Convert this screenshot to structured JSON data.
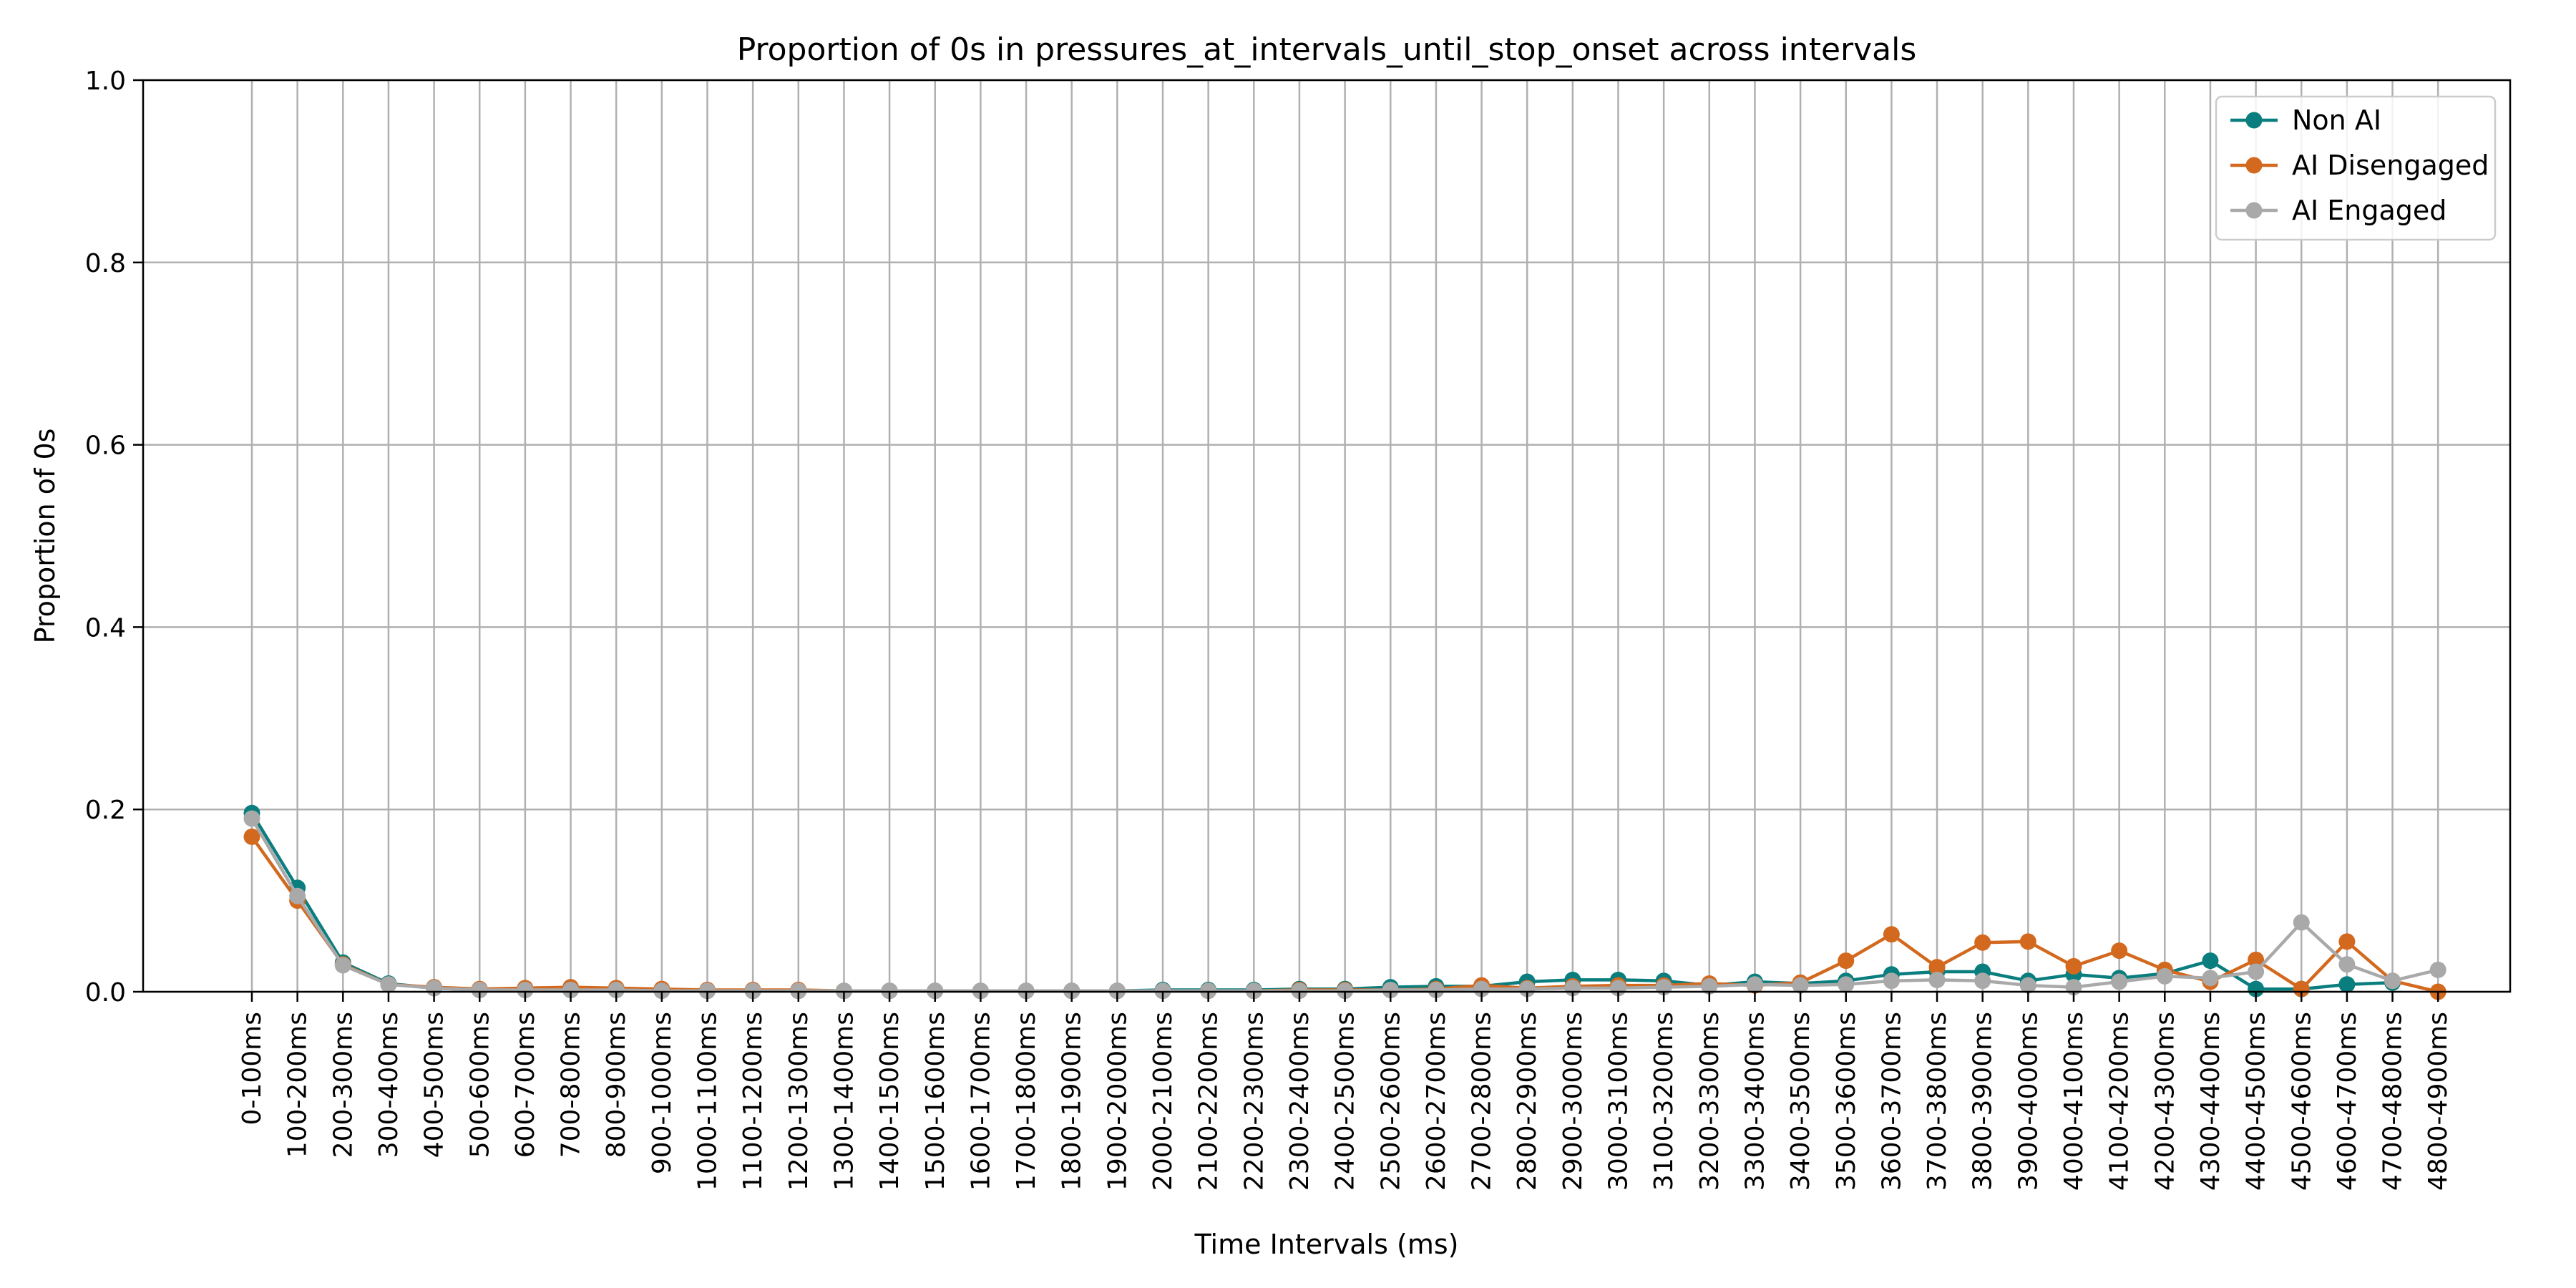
{
  "chart_data": {
    "type": "line",
    "title": "Proportion of 0s in pressures_at_intervals_until_stop_onset across intervals",
    "xlabel": "Time Intervals (ms)",
    "ylabel": "Proportion of 0s",
    "ylim": [
      0,
      1.0
    ],
    "yticks": [
      "0.0",
      "0.2",
      "0.4",
      "0.6",
      "0.8",
      "1.0"
    ],
    "grid": true,
    "legend_position": "top-right",
    "categories": [
      "0-100ms",
      "100-200ms",
      "200-300ms",
      "300-400ms",
      "400-500ms",
      "500-600ms",
      "600-700ms",
      "700-800ms",
      "800-900ms",
      "900-1000ms",
      "1000-1100ms",
      "1100-1200ms",
      "1200-1300ms",
      "1300-1400ms",
      "1400-1500ms",
      "1500-1600ms",
      "1600-1700ms",
      "1700-1800ms",
      "1800-1900ms",
      "1900-2000ms",
      "2000-2100ms",
      "2100-2200ms",
      "2200-2300ms",
      "2300-2400ms",
      "2400-2500ms",
      "2500-2600ms",
      "2600-2700ms",
      "2700-2800ms",
      "2800-2900ms",
      "2900-3000ms",
      "3000-3100ms",
      "3100-3200ms",
      "3200-3300ms",
      "3300-3400ms",
      "3400-3500ms",
      "3500-3600ms",
      "3600-3700ms",
      "3700-3800ms",
      "3800-3900ms",
      "3900-4000ms",
      "4000-4100ms",
      "4100-4200ms",
      "4200-4300ms",
      "4300-4400ms",
      "4400-4500ms",
      "4500-4600ms",
      "4600-4700ms",
      "4700-4800ms",
      "4800-4900ms"
    ],
    "series": [
      {
        "name": "Non AI",
        "color": "#0a7e7e",
        "values": [
          0.196,
          0.114,
          0.032,
          0.009,
          0.004,
          0.002,
          0.002,
          0.002,
          0.002,
          0.002,
          0.001,
          0.001,
          0.001,
          0.001,
          0.001,
          0.001,
          0.001,
          0.001,
          0.001,
          0.001,
          0.002,
          0.002,
          0.002,
          0.003,
          0.003,
          0.005,
          0.006,
          0.006,
          0.011,
          0.013,
          0.013,
          0.012,
          0.007,
          0.011,
          0.009,
          0.012,
          0.019,
          0.022,
          0.022,
          0.012,
          0.019,
          0.015,
          0.02,
          0.034,
          0.003,
          0.003,
          0.008,
          0.01,
          null
        ]
      },
      {
        "name": "AI Disengaged",
        "color": "#d2691e",
        "values": [
          0.17,
          0.1,
          0.03,
          0.008,
          0.005,
          0.003,
          0.004,
          0.005,
          0.004,
          0.003,
          0.002,
          0.002,
          0.002,
          0.001,
          0.001,
          0.001,
          0.001,
          0.001,
          0.001,
          0.001,
          0.001,
          0.001,
          0.001,
          0.002,
          0.002,
          0.002,
          0.003,
          0.007,
          0.004,
          0.006,
          0.007,
          0.007,
          0.009,
          0.007,
          0.01,
          0.034,
          0.063,
          0.027,
          0.054,
          0.055,
          0.028,
          0.045,
          0.024,
          0.011,
          0.035,
          0.003,
          0.055,
          0.012,
          0.0
        ]
      },
      {
        "name": "AI Engaged",
        "color": "#a9a9a9",
        "values": [
          0.19,
          0.105,
          0.029,
          0.008,
          0.004,
          0.002,
          0.002,
          0.002,
          0.002,
          0.001,
          0.001,
          0.001,
          0.001,
          0.001,
          0.001,
          0.001,
          0.001,
          0.001,
          0.001,
          0.001,
          0.001,
          0.001,
          0.001,
          0.001,
          0.001,
          0.002,
          0.002,
          0.003,
          0.003,
          0.004,
          0.004,
          0.005,
          0.006,
          0.008,
          0.007,
          0.008,
          0.012,
          0.013,
          0.012,
          0.007,
          0.005,
          0.011,
          0.017,
          0.015,
          0.022,
          0.076,
          0.03,
          0.012,
          0.024
        ]
      }
    ]
  }
}
